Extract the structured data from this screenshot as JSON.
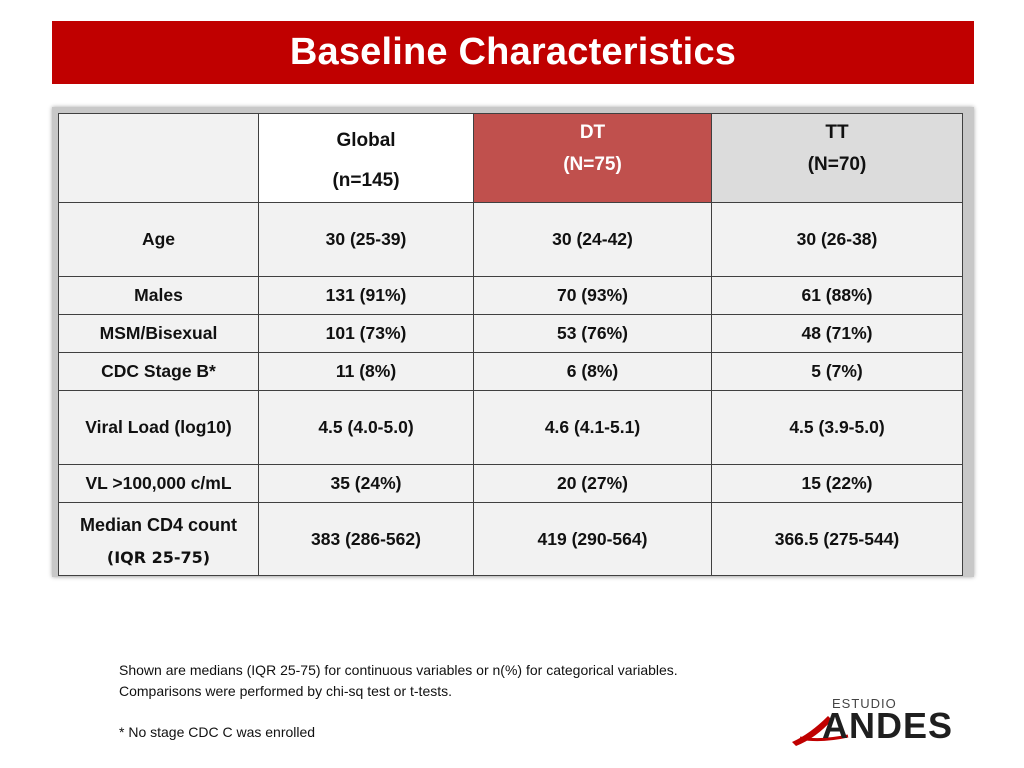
{
  "title": "Baseline Characteristics",
  "table": {
    "headers": {
      "global_l1": "Global",
      "global_l2": "(n=145)",
      "dt_l1": "DT",
      "dt_l2": "(N=75)",
      "tt_l1": "TT",
      "tt_l2": "(N=70)"
    },
    "rows": [
      {
        "label": "Age",
        "global": "30 (25-39)",
        "dt": "30 (24-42)",
        "tt": "30 (26-38)"
      },
      {
        "label": "Males",
        "global": "131 (91%)",
        "dt": "70 (93%)",
        "tt": "61 (88%)"
      },
      {
        "label": "MSM/Bisexual",
        "global": "101 (73%)",
        "dt": "53 (76%)",
        "tt": "48 (71%)"
      },
      {
        "label": "CDC Stage B*",
        "global": "11 (8%)",
        "dt": "6 (8%)",
        "tt": "5 (7%)"
      },
      {
        "label": "Viral Load (log10)",
        "global": "4.5 (4.0-5.0)",
        "dt": "4.6 (4.1-5.1)",
        "tt": "4.5 (3.9-5.0)"
      },
      {
        "label": "VL >100,000 c/mL",
        "global": "35 (24%)",
        "dt": "20 (27%)",
        "tt": "15 (22%)"
      },
      {
        "label": "Median CD4 count",
        "label_l2": "(IQR 25-75)",
        "global": "383 (286-562)",
        "dt": "419 (290-564)",
        "tt": "366.5 (275-544)"
      }
    ]
  },
  "notes": {
    "line1": "Shown are medians (IQR 25-75) for continuous variables or n(%) for categorical variables.",
    "line2": "Comparisons were performed by chi-sq test or t-tests.",
    "line3": "* No stage CDC C was enrolled"
  },
  "logo": {
    "estudio": "ESTUDIO",
    "name": "ANDES"
  },
  "colors": {
    "title_bar": "#c00000",
    "dt_header": "#c0504d",
    "tt_header": "#dcdcdc"
  }
}
